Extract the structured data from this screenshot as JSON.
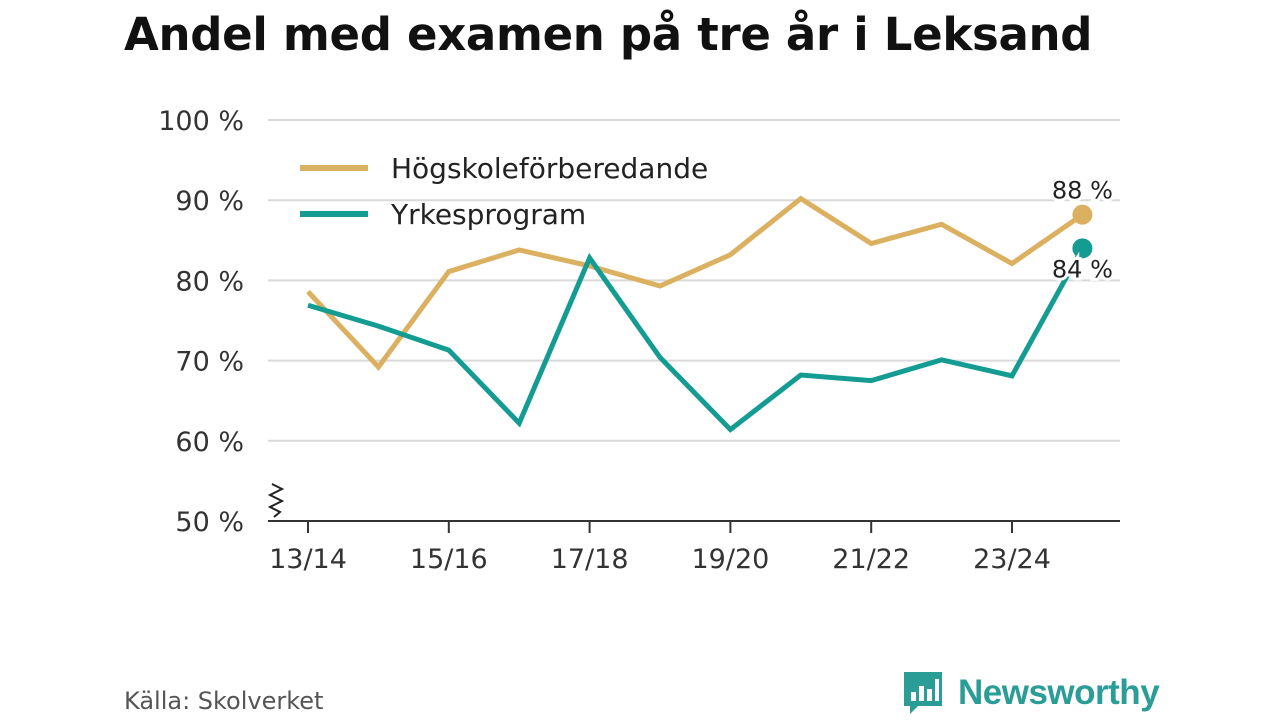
{
  "chart_data": {
    "type": "line",
    "title": "Andel med examen på tre år i Leksand",
    "categories": [
      "13/14",
      "14/15",
      "15/16",
      "16/17",
      "17/18",
      "18/19",
      "19/20",
      "20/21",
      "21/22",
      "22/23",
      "23/24",
      "24/25"
    ],
    "tick_labels": [
      "13/14",
      "15/16",
      "17/18",
      "19/20",
      "21/22",
      "23/24"
    ],
    "y_ticks": [
      50,
      60,
      70,
      80,
      90,
      100
    ],
    "y_tick_labels": [
      "50 %",
      "60 %",
      "70 %",
      "80 %",
      "90 %",
      "100 %"
    ],
    "ylim": [
      50,
      100
    ],
    "y_axis_break": true,
    "legend_position": "top-left",
    "series": [
      {
        "name": "Högskoleförberedande",
        "color": "#dbb060",
        "values": [
          78.6,
          69.2,
          81.1,
          83.8,
          81.8,
          79.3,
          83.2,
          90.2,
          84.6,
          87.0,
          82.1,
          88.2
        ],
        "end_label": "88 %"
      },
      {
        "name": "Yrkesprogram",
        "color": "#149c93",
        "values": [
          76.9,
          74.3,
          71.3,
          62.2,
          82.8,
          70.4,
          61.4,
          68.2,
          67.5,
          70.1,
          68.1,
          84.0
        ],
        "end_label": "84 %"
      }
    ]
  },
  "source": "Källa: Skolverket",
  "brand": "Newsworthy",
  "colors": {
    "grid": "#d9d9d9",
    "axis": "#333333",
    "brand": "#2a9d97"
  }
}
